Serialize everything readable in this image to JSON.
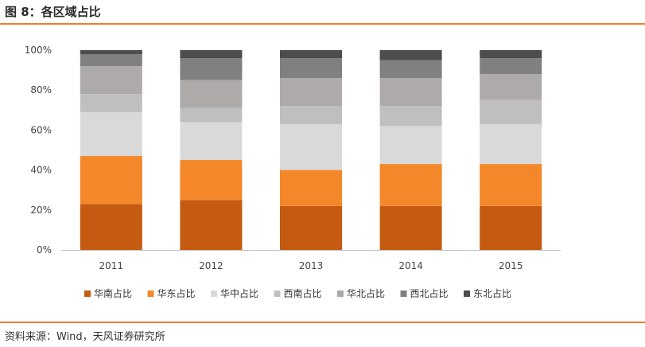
{
  "figure": {
    "title": "图 8：各区域占比",
    "source": "资料来源：Wind，天风证券研究所"
  },
  "chart_data": {
    "type": "bar",
    "stacked": true,
    "percent": true,
    "categories": [
      "2011",
      "2012",
      "2013",
      "2014",
      "2015"
    ],
    "ylim": [
      0,
      100
    ],
    "yticks": [
      "0%",
      "20%",
      "40%",
      "60%",
      "80%",
      "100%"
    ],
    "grid": false,
    "legend_position": "bottom",
    "series": [
      {
        "name": "华南占比",
        "color": "#c55a11",
        "values": [
          23,
          25,
          22,
          22,
          22
        ]
      },
      {
        "name": "华东占比",
        "color": "#f4872a",
        "values": [
          24,
          20,
          18,
          21,
          21
        ]
      },
      {
        "name": "华中占比",
        "color": "#d9d9d9",
        "values": [
          22,
          19,
          23,
          19,
          20
        ]
      },
      {
        "name": "西南占比",
        "color": "#bfbfbf",
        "values": [
          9,
          7,
          9,
          10,
          12
        ]
      },
      {
        "name": "华北占比",
        "color": "#aeaaaa",
        "values": [
          14,
          14,
          14,
          14,
          13
        ]
      },
      {
        "name": "西北占比",
        "color": "#808080",
        "values": [
          6,
          11,
          10,
          9,
          8
        ]
      },
      {
        "name": "东北占比",
        "color": "#4d4d4d",
        "values": [
          2,
          4,
          4,
          5,
          4
        ]
      }
    ]
  }
}
